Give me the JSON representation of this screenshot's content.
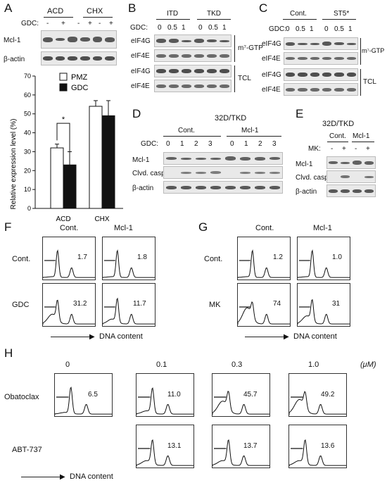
{
  "panels": {
    "A": {
      "label": "A",
      "groups": [
        "ACD",
        "CHX"
      ],
      "gdc_label": "GDC:",
      "signs": [
        "-",
        "+",
        "-",
        "+",
        "-",
        "+"
      ],
      "rows": [
        "Mcl-1",
        "β-actin"
      ],
      "chart_data": {
        "type": "bar",
        "categories": [
          "ACD",
          "CHX"
        ],
        "series": [
          {
            "name": "PMZ",
            "values": [
              32,
              54
            ]
          },
          {
            "name": "GDC",
            "values": [
              23,
              49
            ]
          }
        ],
        "errors": [
          [
            2,
            7
          ],
          [
            3,
            8
          ]
        ],
        "ylabel": "Relative expression level (%)",
        "ylim": [
          0,
          70
        ],
        "yticks": [
          0,
          10,
          20,
          30,
          40,
          50,
          60,
          70
        ],
        "significance": "*",
        "legend_placement": "top-center"
      }
    },
    "B": {
      "label": "B",
      "groups": [
        "ITD",
        "TKD"
      ],
      "gdc_label": "GDC:",
      "doses": [
        "0",
        "0.5",
        "1",
        "0",
        "0.5",
        "1"
      ],
      "rows": [
        "eIF4G",
        "eIF4E",
        "eIF4G",
        "eIF4E"
      ],
      "brackets": [
        "m⁷-GTP",
        "TCL"
      ]
    },
    "C": {
      "label": "C",
      "groups": [
        "Cont.",
        "ST5*"
      ],
      "gdc_label": "GDC:",
      "doses": [
        "0",
        "0.5",
        "1",
        "0",
        "0.5",
        "1"
      ],
      "rows": [
        "eIF4G",
        "eIF4E",
        "eIF4G",
        "eIF4E"
      ],
      "brackets": [
        "m⁷-GTP",
        "TCL"
      ]
    },
    "D": {
      "label": "D",
      "title": "32D/TKD",
      "groups": [
        "Cont.",
        "Mcl-1"
      ],
      "gdc_label": "GDC:",
      "doses": [
        "0",
        "1",
        "2",
        "3",
        "0",
        "1",
        "2",
        "3"
      ],
      "rows": [
        "Mcl-1",
        "Clvd. casp.9",
        "β-actin"
      ]
    },
    "E": {
      "label": "E",
      "title": "32D/TKD",
      "groups": [
        "Cont.",
        "Mcl-1"
      ],
      "mk_label": "MK:",
      "signs": [
        "-",
        "+",
        "-",
        "+"
      ],
      "rows": [
        "Mcl-1",
        "Clvd. casp.9",
        "β-actin"
      ]
    },
    "F": {
      "label": "F",
      "cols": [
        "Cont.",
        "Mcl-1"
      ],
      "rows": [
        "Cont.",
        "GDC"
      ],
      "values": [
        "1.7",
        "1.8",
        "31.2",
        "11.7"
      ],
      "axis": "DNA content"
    },
    "G": {
      "label": "G",
      "cols": [
        "Cont.",
        "Mcl-1"
      ],
      "rows": [
        "Cont.",
        "MK"
      ],
      "values": [
        "1.2",
        "1.0",
        "74",
        "31"
      ],
      "axis": "DNA content"
    },
    "H": {
      "label": "H",
      "doses": [
        "0",
        "0.1",
        "0.3",
        "1.0"
      ],
      "unit": "(μM)",
      "rows": [
        "Obatoclax",
        "ABT-737"
      ],
      "obatoclax_values": [
        "6.5",
        "11.0",
        "45.7",
        "49.2"
      ],
      "abt_values": [
        "13.1",
        "13.7",
        "13.6"
      ],
      "axis": "DNA content"
    }
  }
}
